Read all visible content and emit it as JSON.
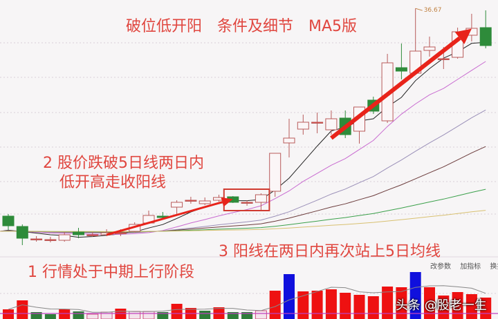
{
  "annotations": {
    "title": "破位低开阳　条件及细节　MA5版",
    "point2_line1": "2 股价跌破5日线两日内",
    "point2_line2": "低开高走收阳线",
    "point3": "3 阳线在两日内再次站上5日均线",
    "point1": "1 行情处于中期上行阶段"
  },
  "toolbar": {
    "change_params": "改参数",
    "add_indicator": "加指标",
    "switch_indicator": "换指标"
  },
  "watermark": "头条 @股老一生",
  "colors": {
    "up": "#e8483f",
    "down": "#2e8b3a",
    "volume_up": "#ee1111",
    "volume_down": "#2e7d3a",
    "volume_special": "#1010dd",
    "annotation": "#e0463f",
    "arrow": "#e8231a"
  },
  "chart_data": {
    "type": "candlestick",
    "title": "",
    "high_label": "36.67",
    "ylim": [
      15.2,
      37.4
    ],
    "grid": true,
    "moving_averages": [
      {
        "period": 5,
        "color": "#222222"
      },
      {
        "period": 10,
        "color": "#c86ad0"
      },
      {
        "period": 20,
        "color": "#9a8fb8"
      },
      {
        "period": 30,
        "color": "#6b3b3b"
      },
      {
        "period": 60,
        "color": "#3aa04a"
      },
      {
        "period": 120,
        "color": "#d8c070"
      }
    ],
    "candles": [
      {
        "o": 18.62,
        "c": 17.78,
        "h": 18.8,
        "l": 17.42
      },
      {
        "o": 17.72,
        "c": 16.7,
        "h": 17.9,
        "l": 16.1
      },
      {
        "o": 16.64,
        "c": 16.64,
        "h": 16.88,
        "l": 16.4
      },
      {
        "o": 16.58,
        "c": 16.58,
        "h": 16.82,
        "l": 16.34
      },
      {
        "o": 16.52,
        "c": 17.0,
        "h": 17.24,
        "l": 16.4
      },
      {
        "o": 17.24,
        "c": 17.0,
        "h": 17.6,
        "l": 16.7
      },
      {
        "o": 17.0,
        "c": 17.0,
        "h": 17.24,
        "l": 16.82
      },
      {
        "o": 17.0,
        "c": 17.18,
        "h": 17.48,
        "l": 16.88
      },
      {
        "o": 17.18,
        "c": 17.18,
        "h": 17.48,
        "l": 16.88
      },
      {
        "o": 17.3,
        "c": 17.9,
        "h": 18.08,
        "l": 17.18
      },
      {
        "o": 18.02,
        "c": 18.68,
        "h": 19.1,
        "l": 18.02
      },
      {
        "o": 18.62,
        "c": 18.5,
        "h": 18.98,
        "l": 18.32
      },
      {
        "o": 19.4,
        "c": 19.82,
        "h": 20.0,
        "l": 18.68
      },
      {
        "o": 20.0,
        "c": 20.0,
        "h": 20.3,
        "l": 19.7
      },
      {
        "o": 19.7,
        "c": 19.94,
        "h": 20.24,
        "l": 19.58
      },
      {
        "o": 20.0,
        "c": 20.24,
        "h": 20.48,
        "l": 19.88
      },
      {
        "o": 20.3,
        "c": 19.82,
        "h": 20.36,
        "l": 19.76
      },
      {
        "o": 19.82,
        "c": 19.82,
        "h": 20.0,
        "l": 19.52
      },
      {
        "o": 19.82,
        "c": 20.48,
        "h": 20.6,
        "l": 19.1
      },
      {
        "o": 20.78,
        "c": 24.08,
        "h": 24.08,
        "l": 20.3
      },
      {
        "o": 24.98,
        "c": 25.4,
        "h": 27.08,
        "l": 23.72
      },
      {
        "o": 26.18,
        "c": 26.78,
        "h": 27.44,
        "l": 25.7
      },
      {
        "o": 26.78,
        "c": 26.78,
        "h": 27.62,
        "l": 25.82
      },
      {
        "o": 26.12,
        "c": 27.08,
        "h": 27.8,
        "l": 25.7
      },
      {
        "o": 27.14,
        "c": 25.7,
        "h": 27.8,
        "l": 25.4
      },
      {
        "o": 26.0,
        "c": 28.1,
        "h": 28.1,
        "l": 24.92
      },
      {
        "o": 28.7,
        "c": 27.74,
        "h": 29.0,
        "l": 27.5
      },
      {
        "o": 26.9,
        "c": 31.94,
        "h": 32.72,
        "l": 26.72
      },
      {
        "o": 31.52,
        "c": 31.22,
        "h": 33.62,
        "l": 30.5
      },
      {
        "o": 31.04,
        "c": 32.96,
        "h": 36.67,
        "l": 30.92
      },
      {
        "o": 33.02,
        "c": 33.32,
        "h": 34.22,
        "l": 32.48
      },
      {
        "o": 32.3,
        "c": 32.3,
        "h": 33.32,
        "l": 31.4
      },
      {
        "o": 32.42,
        "c": 34.64,
        "h": 35.0,
        "l": 32.3
      },
      {
        "o": 34.34,
        "c": 34.94,
        "h": 36.2,
        "l": 33.8
      },
      {
        "o": 35.0,
        "c": 33.44,
        "h": 36.5,
        "l": 33.2
      }
    ],
    "volume": {
      "ylim": [
        0,
        70
      ],
      "values": [
        14,
        27,
        10,
        7,
        14,
        11,
        7,
        10,
        15,
        11,
        11,
        10,
        22,
        16,
        12,
        17,
        10,
        10,
        12,
        41,
        65,
        40,
        41,
        43,
        38,
        35,
        33,
        47,
        46,
        68,
        46,
        34,
        39,
        36,
        31
      ],
      "kinds": [
        "up",
        "up",
        "down",
        "down",
        "up",
        "down",
        "flat",
        "flat",
        "up",
        "flat",
        "flat",
        "down",
        "up",
        "up",
        "down",
        "up",
        "down",
        "down",
        "flat",
        "up",
        "special",
        "up",
        "up",
        "up",
        "up",
        "up",
        "up",
        "up",
        "up",
        "special",
        "up",
        "up",
        "up",
        "up",
        "up"
      ]
    },
    "highlight_box": {
      "from_index": 17,
      "to_index": 18
    },
    "arrows": [
      {
        "from": {
          "index": 7,
          "price": 17.0
        },
        "to": {
          "index": 16,
          "price": 20.1
        }
      },
      {
        "from": {
          "index": 23,
          "price": 25.4
        },
        "to": {
          "index": 33,
          "price": 34.9
        }
      }
    ]
  }
}
